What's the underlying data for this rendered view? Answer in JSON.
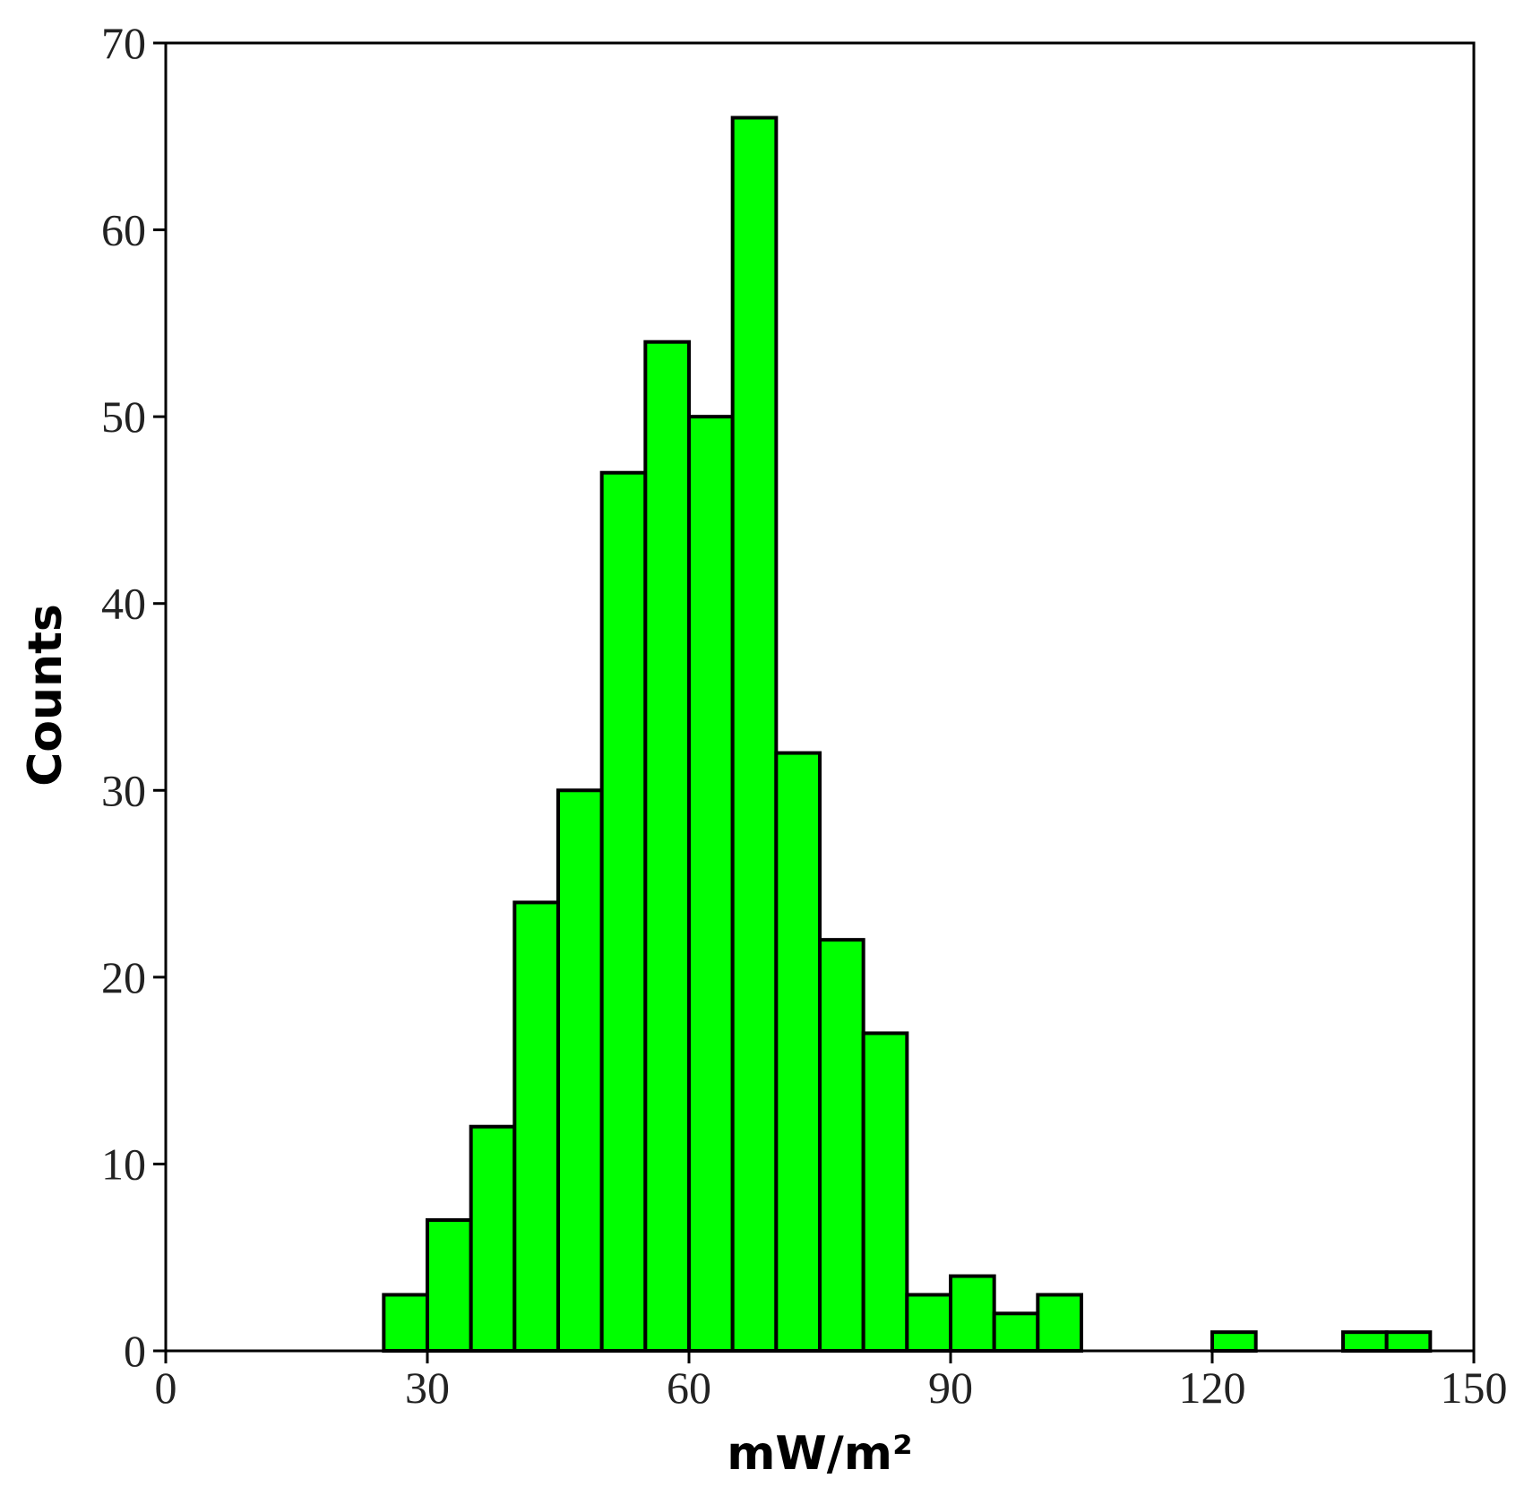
{
  "chart_data": {
    "type": "histogram",
    "xlabel": "mW/m²",
    "ylabel": "Counts",
    "bins": [
      25,
      30,
      35,
      40,
      45,
      50,
      55,
      60,
      65,
      70,
      75,
      80,
      85,
      90,
      95,
      100,
      105,
      110,
      115,
      120,
      125,
      130,
      135,
      140,
      145
    ],
    "values": [
      3,
      7,
      12,
      24,
      30,
      47,
      54,
      50,
      66,
      32,
      22,
      17,
      3,
      4,
      2,
      3,
      0,
      0,
      0,
      1,
      0,
      0,
      1,
      1
    ],
    "color": "#00ff00",
    "xlim": [
      0,
      150
    ],
    "xticks": [
      0,
      30,
      60,
      90,
      120,
      150
    ],
    "ylim": [
      0,
      70
    ],
    "yticks": [
      0,
      10,
      20,
      30,
      40,
      50,
      60,
      70
    ]
  }
}
